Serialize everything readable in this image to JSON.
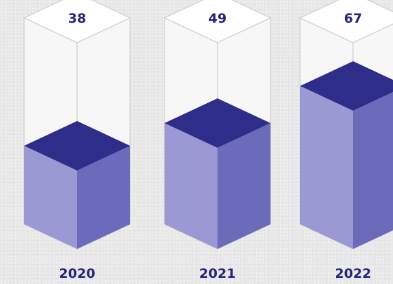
{
  "chart_data": {
    "type": "bar",
    "style": "isometric-3d-cylinder",
    "categories": [
      "2020",
      "2021",
      "2022"
    ],
    "values": [
      38,
      49,
      67
    ],
    "ylim": [
      0,
      100
    ],
    "title": "",
    "xlabel": "",
    "ylabel": "",
    "grid": false,
    "legend": "none",
    "colors": {
      "top": "#2e2d8a",
      "left": "#9a99d3",
      "right": "#6c6bbb",
      "ghost_fill": "#f7f7f7",
      "ghost_stroke": "#d2d2d2",
      "label": "#25237a"
    }
  }
}
